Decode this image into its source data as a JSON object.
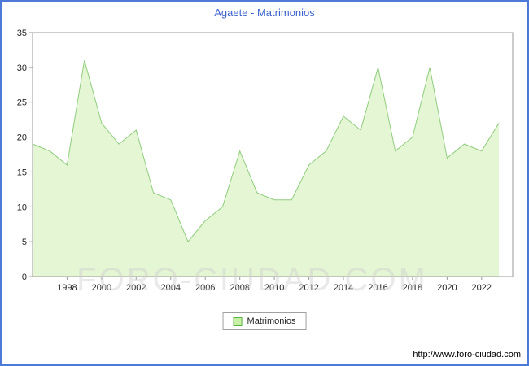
{
  "header": {
    "title": "Agaete - Matrimonios"
  },
  "legend": {
    "label": "Matrimonios"
  },
  "watermark": "FORO-CIUDAD.COM",
  "footer": {
    "url": "http://www.foro-ciudad.com"
  },
  "chart_data": {
    "type": "area",
    "title": "Agaete - Matrimonios",
    "x": [
      1996,
      1997,
      1998,
      1999,
      2000,
      2001,
      2002,
      2003,
      2004,
      2005,
      2006,
      2007,
      2008,
      2009,
      2010,
      2011,
      2012,
      2013,
      2014,
      2015,
      2016,
      2017,
      2018,
      2019,
      2020,
      2021,
      2022,
      2023
    ],
    "series": [
      {
        "name": "Matrimonios",
        "values": [
          19,
          18,
          16,
          31,
          22,
          19,
          21,
          12,
          11,
          5,
          8,
          10,
          18,
          12,
          11,
          11,
          16,
          18,
          23,
          21,
          30,
          18,
          20,
          30,
          17,
          19,
          18,
          22
        ]
      }
    ],
    "ylim": [
      0,
      35
    ],
    "ytick_step": 5,
    "xticks": [
      1998,
      2000,
      2002,
      2004,
      2006,
      2008,
      2010,
      2012,
      2014,
      2016,
      2018,
      2020,
      2022
    ],
    "xlabel": "",
    "ylabel": "",
    "grid": false,
    "legend_position": "bottom",
    "colors": {
      "page_border": "#4d7ad6",
      "title": "#3b62cc",
      "area_fill": "#e4f6d4",
      "line": "#90cc7e",
      "frame": "#9a9a9a",
      "legend_swatch_fill": "#c8efa6",
      "legend_swatch_border": "#58b23e"
    }
  }
}
